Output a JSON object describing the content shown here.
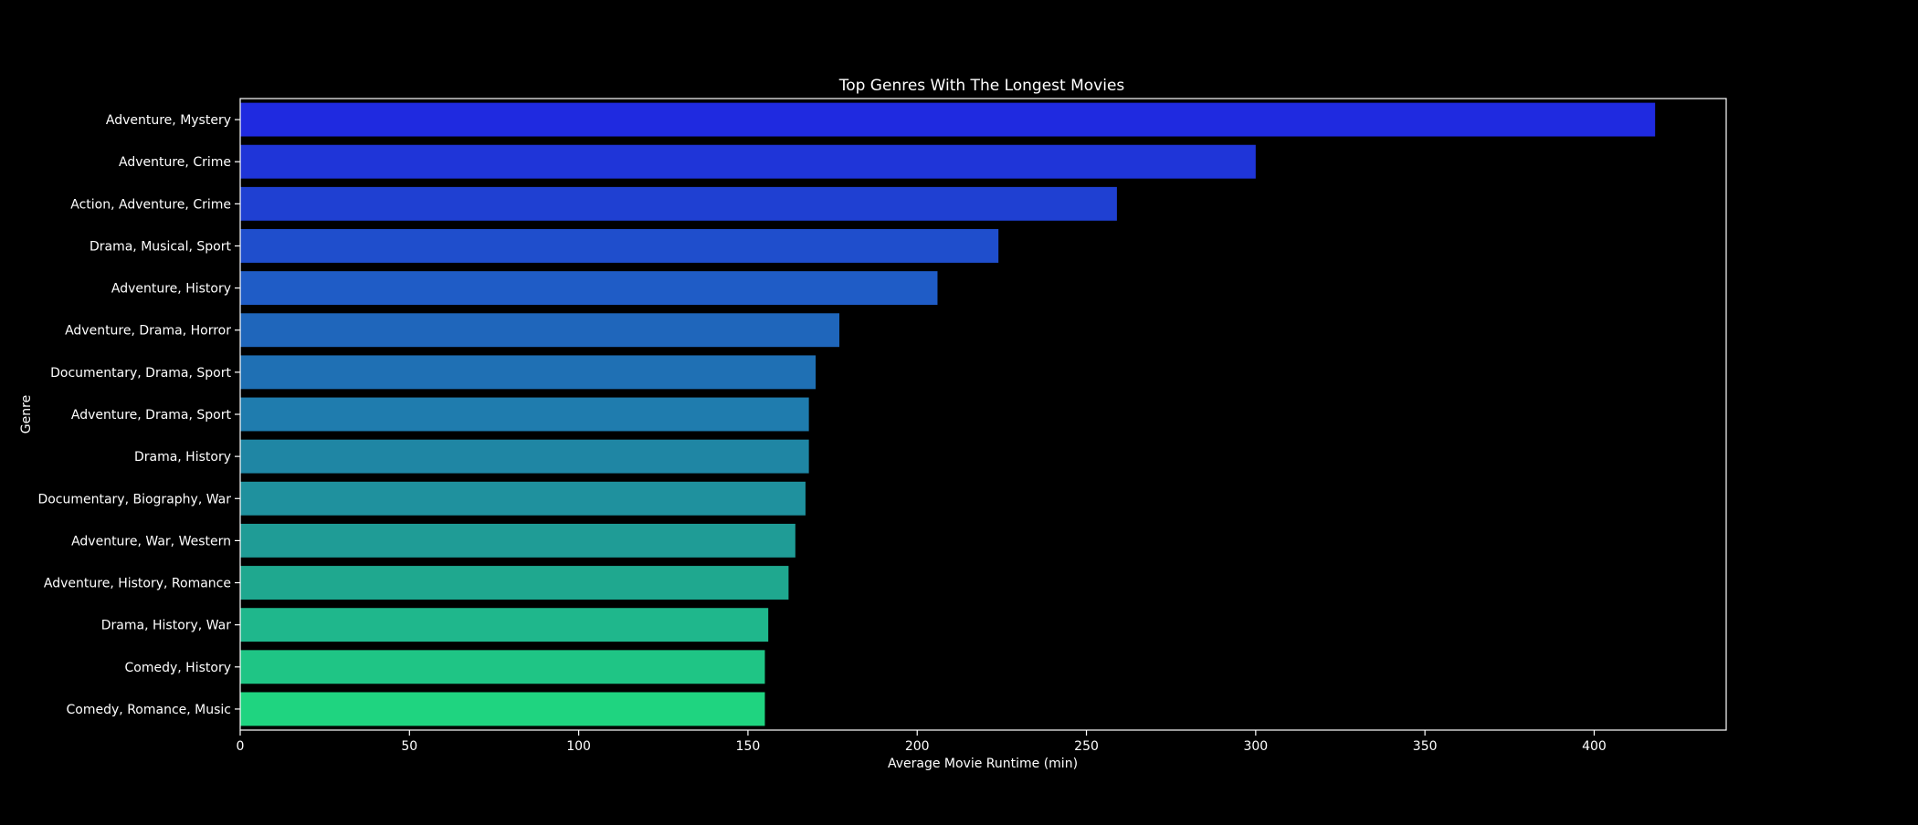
{
  "chart_data": {
    "type": "bar",
    "orientation": "horizontal",
    "title": "Top Genres With The Longest Movies",
    "xlabel": "Average Movie Runtime (min)",
    "ylabel": "Genre",
    "xlim": [
      0,
      439
    ],
    "xticks": [
      0,
      50,
      100,
      150,
      200,
      250,
      300,
      350,
      400
    ],
    "grid": false,
    "categories": [
      "Adventure, Mystery",
      "Adventure, Crime",
      "Action, Adventure, Crime",
      "Drama, Musical, Sport",
      "Adventure, History",
      "Adventure, Drama, Horror",
      "Documentary, Drama, Sport",
      "Adventure, Drama, Sport",
      "Drama, History",
      "Documentary, Biography, War",
      "Adventure, War, Western",
      "Adventure, History, Romance",
      "Drama, History, War",
      "Comedy, History",
      "Comedy, Romance, Music"
    ],
    "values": [
      418,
      300,
      259,
      224,
      206,
      177,
      170,
      168,
      168,
      167,
      164,
      162,
      156,
      155,
      155
    ],
    "colors": [
      "#1f2ae0",
      "#1f35d8",
      "#1f40d2",
      "#1f4ecc",
      "#1f5cc6",
      "#1f66bb",
      "#1f70b4",
      "#1f7cae",
      "#1f86a4",
      "#1f919e",
      "#1f9c96",
      "#1fa88f",
      "#1fb78c",
      "#1fc585",
      "#1fd480"
    ],
    "background": "#000000",
    "foreground": "#ffffff"
  }
}
